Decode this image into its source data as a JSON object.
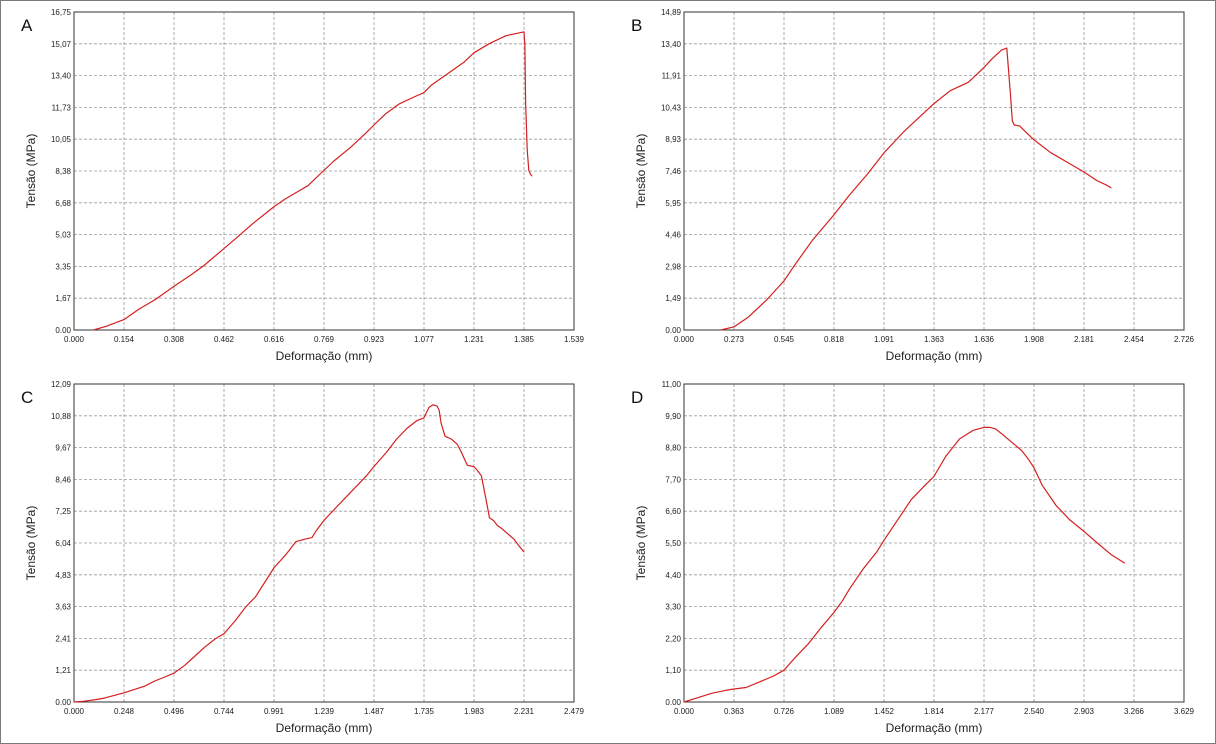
{
  "chart_data": [
    {
      "type": "line",
      "panel_label": "A",
      "xlabel": "Deformação (mm)",
      "ylabel": "Tensão (MPa)",
      "x_ticks": [
        "0.000",
        "0.154",
        "0.308",
        "0.462",
        "0.616",
        "0.769",
        "0.923",
        "1.077",
        "1.231",
        "1.385",
        "1.539"
      ],
      "y_ticks": [
        "0.00",
        "1,67",
        "3,35",
        "5,03",
        "6,68",
        "8,38",
        "10,05",
        "11,73",
        "13,40",
        "15,07",
        "16,75"
      ],
      "xlim": [
        0,
        1.539
      ],
      "ylim": [
        0,
        16.75
      ],
      "grid": true,
      "series": [
        {
          "color": "#d42020",
          "x": [
            0.06,
            0.1,
            0.154,
            0.2,
            0.25,
            0.308,
            0.36,
            0.4,
            0.462,
            0.5,
            0.55,
            0.616,
            0.65,
            0.69,
            0.72,
            0.769,
            0.8,
            0.85,
            0.9,
            0.923,
            0.96,
            1.0,
            1.05,
            1.077,
            1.1,
            1.15,
            1.2,
            1.231,
            1.28,
            1.33,
            1.37,
            1.385,
            1.388,
            1.39,
            1.395,
            1.4,
            1.405,
            1.41
          ],
          "y": [
            0.0,
            0.2,
            0.55,
            1.1,
            1.6,
            2.3,
            2.9,
            3.4,
            4.3,
            4.85,
            5.6,
            6.5,
            6.9,
            7.3,
            7.6,
            8.4,
            8.9,
            9.6,
            10.4,
            10.8,
            11.4,
            11.9,
            12.3,
            12.5,
            12.9,
            13.5,
            14.1,
            14.6,
            15.1,
            15.5,
            15.65,
            15.7,
            15.0,
            12.0,
            9.5,
            8.4,
            8.2,
            8.1
          ]
        }
      ]
    },
    {
      "type": "line",
      "panel_label": "B",
      "xlabel": "Deformação (mm)",
      "ylabel": "Tensão (MPa)",
      "x_ticks": [
        "0.000",
        "0.273",
        "0.545",
        "0.818",
        "1.091",
        "1.363",
        "1.636",
        "1.908",
        "2.181",
        "2.454",
        "2.726"
      ],
      "y_ticks": [
        "0.00",
        "1,49",
        "2,98",
        "4,46",
        "5,95",
        "7,46",
        "8,93",
        "10,43",
        "11,91",
        "13,40",
        "14,89"
      ],
      "xlim": [
        0,
        2.726
      ],
      "ylim": [
        0,
        14.89
      ],
      "grid": true,
      "series": [
        {
          "color": "#d42020",
          "x": [
            0.2,
            0.273,
            0.35,
            0.45,
            0.545,
            0.6,
            0.7,
            0.818,
            0.9,
            1.0,
            1.091,
            1.2,
            1.3,
            1.363,
            1.45,
            1.55,
            1.6,
            1.636,
            1.68,
            1.73,
            1.76,
            1.78,
            1.79,
            1.8,
            1.83,
            1.86,
            1.908,
            2.0,
            2.1,
            2.181,
            2.25,
            2.3,
            2.33
          ],
          "y": [
            0.0,
            0.15,
            0.6,
            1.4,
            2.3,
            3.0,
            4.2,
            5.4,
            6.3,
            7.3,
            8.3,
            9.3,
            10.1,
            10.6,
            11.2,
            11.6,
            12.0,
            12.3,
            12.7,
            13.1,
            13.2,
            11.0,
            9.8,
            9.6,
            9.55,
            9.3,
            8.9,
            8.3,
            7.8,
            7.4,
            7.0,
            6.8,
            6.65
          ]
        }
      ]
    },
    {
      "type": "line",
      "panel_label": "C",
      "xlabel": "Deformação (mm)",
      "ylabel": "Tensão (MPa)",
      "x_ticks": [
        "0.000",
        "0.248",
        "0.496",
        "0.744",
        "0.991",
        "1.239",
        "1.487",
        "1.735",
        "1.983",
        "2.231",
        "2.479"
      ],
      "y_ticks": [
        "0.00",
        "1,21",
        "2,41",
        "3,63",
        "4,83",
        "6,04",
        "7,25",
        "8,46",
        "9,67",
        "10,88",
        "12,09"
      ],
      "xlim": [
        0,
        2.479
      ],
      "ylim": [
        0,
        12.09
      ],
      "grid": true,
      "series": [
        {
          "color": "#d42020",
          "x": [
            0.0,
            0.05,
            0.1,
            0.15,
            0.2,
            0.248,
            0.3,
            0.35,
            0.4,
            0.45,
            0.496,
            0.55,
            0.6,
            0.65,
            0.7,
            0.744,
            0.8,
            0.85,
            0.9,
            0.95,
            0.991,
            1.05,
            1.1,
            1.15,
            1.18,
            1.2,
            1.239,
            1.3,
            1.35,
            1.4,
            1.45,
            1.487,
            1.55,
            1.6,
            1.65,
            1.7,
            1.735,
            1.76,
            1.78,
            1.8,
            1.81,
            1.82,
            1.84,
            1.87,
            1.9,
            1.92,
            1.95,
            1.983,
            2.0,
            2.02,
            2.04,
            2.06,
            2.08,
            2.1,
            2.12,
            2.15,
            2.18,
            2.2,
            2.231
          ],
          "y": [
            0.0,
            0.03,
            0.08,
            0.15,
            0.25,
            0.35,
            0.48,
            0.6,
            0.8,
            0.95,
            1.1,
            1.4,
            1.75,
            2.1,
            2.4,
            2.6,
            3.1,
            3.6,
            4.0,
            4.6,
            5.1,
            5.6,
            6.1,
            6.2,
            6.25,
            6.5,
            6.9,
            7.4,
            7.8,
            8.2,
            8.6,
            8.95,
            9.5,
            10.0,
            10.4,
            10.7,
            10.8,
            11.2,
            11.3,
            11.25,
            11.1,
            10.6,
            10.1,
            10.0,
            9.8,
            9.5,
            9.0,
            8.95,
            8.8,
            8.6,
            7.8,
            7.0,
            6.9,
            6.7,
            6.6,
            6.4,
            6.2,
            6.0,
            5.7
          ]
        }
      ]
    },
    {
      "type": "line",
      "panel_label": "D",
      "xlabel": "Deformação (mm)",
      "ylabel": "Tensão (MPa)",
      "x_ticks": [
        "0.000",
        "0.363",
        "0.726",
        "1.089",
        "1.452",
        "1.814",
        "2.177",
        "2.540",
        "2.903",
        "3.266",
        "3.629"
      ],
      "y_ticks": [
        "0.00",
        "1,10",
        "2,20",
        "3,30",
        "4,40",
        "5,50",
        "6,60",
        "7,70",
        "8,80",
        "9,90",
        "11,00"
      ],
      "xlim": [
        0,
        3.629
      ],
      "ylim": [
        0,
        11.0
      ],
      "grid": true,
      "series": [
        {
          "color": "#d42020",
          "x": [
            0.0,
            0.1,
            0.2,
            0.3,
            0.363,
            0.45,
            0.55,
            0.65,
            0.726,
            0.8,
            0.9,
            1.0,
            1.089,
            1.15,
            1.2,
            1.3,
            1.4,
            1.452,
            1.55,
            1.65,
            1.75,
            1.814,
            1.9,
            2.0,
            2.1,
            2.177,
            2.22,
            2.26,
            2.3,
            2.35,
            2.4,
            2.45,
            2.5,
            2.54,
            2.6,
            2.7,
            2.8,
            2.903,
            3.0,
            3.1,
            3.2
          ],
          "y": [
            0.0,
            0.15,
            0.3,
            0.4,
            0.45,
            0.5,
            0.7,
            0.9,
            1.1,
            1.5,
            2.0,
            2.6,
            3.1,
            3.5,
            3.9,
            4.6,
            5.2,
            5.6,
            6.3,
            7.0,
            7.5,
            7.8,
            8.5,
            9.1,
            9.4,
            9.5,
            9.5,
            9.45,
            9.3,
            9.1,
            8.9,
            8.7,
            8.4,
            8.1,
            7.5,
            6.8,
            6.3,
            5.9,
            5.5,
            5.1,
            4.8
          ]
        }
      ]
    }
  ]
}
